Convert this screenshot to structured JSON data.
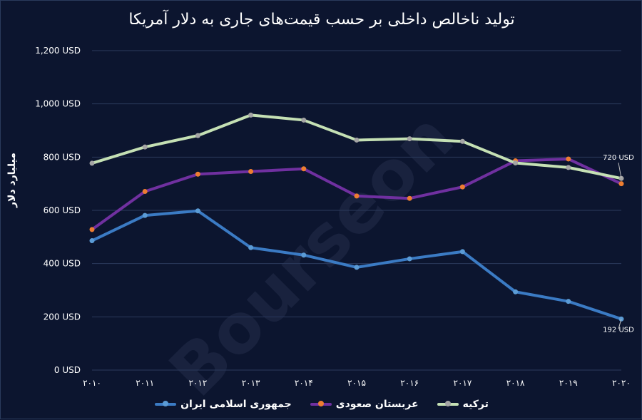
{
  "chart_data": {
    "type": "line",
    "title": "تولید ناخالص داخلی بر حسب قیمت‌های جاری به دلار آمریکا",
    "ylabel": "میلیارد دلار",
    "xlabel": "",
    "ylim": [
      0,
      1200
    ],
    "ytick_labels": [
      "0 USD",
      "200 USD",
      "400 USD",
      "600 USD",
      "800 USD",
      "1,000 USD",
      "1,200 USD"
    ],
    "yticks": [
      0,
      200,
      400,
      600,
      800,
      1000,
      1200
    ],
    "categories": [
      "۲۰۱۰",
      "۲۰۱۱",
      "۲۰۱۲",
      "۲۰۱۳",
      "۲۰۱۴",
      "۲۰۱۵",
      "۲۰۱۶",
      "۲۰۱۷",
      "۲۰۱۸",
      "۲۰۱۹",
      "۲۰۲۰"
    ],
    "series": [
      {
        "name": "جمهوری اسلامی ایران",
        "color": "#3b7bc4",
        "marker": "#5b9bd5",
        "values": [
          486,
          581,
          598,
          460,
          432,
          386,
          418,
          445,
          294,
          258,
          192
        ]
      },
      {
        "name": "عربستان صعودی",
        "color": "#7030a0",
        "marker": "#ed7d31",
        "values": [
          528,
          671,
          736,
          746,
          756,
          654,
          645,
          688,
          786,
          793,
          700
        ]
      },
      {
        "name": "ترکیه",
        "color": "#c5e0b4",
        "marker": "#a5a5a5",
        "values": [
          777,
          838,
          881,
          958,
          939,
          864,
          869,
          859,
          778,
          761,
          720
        ]
      }
    ],
    "annotations": [
      {
        "text": "720 USD",
        "series": 2,
        "index": 10
      },
      {
        "text": "192 USD",
        "series": 0,
        "index": 10
      }
    ],
    "grid": true,
    "legend": "bottom",
    "watermark": "Bourseon"
  }
}
